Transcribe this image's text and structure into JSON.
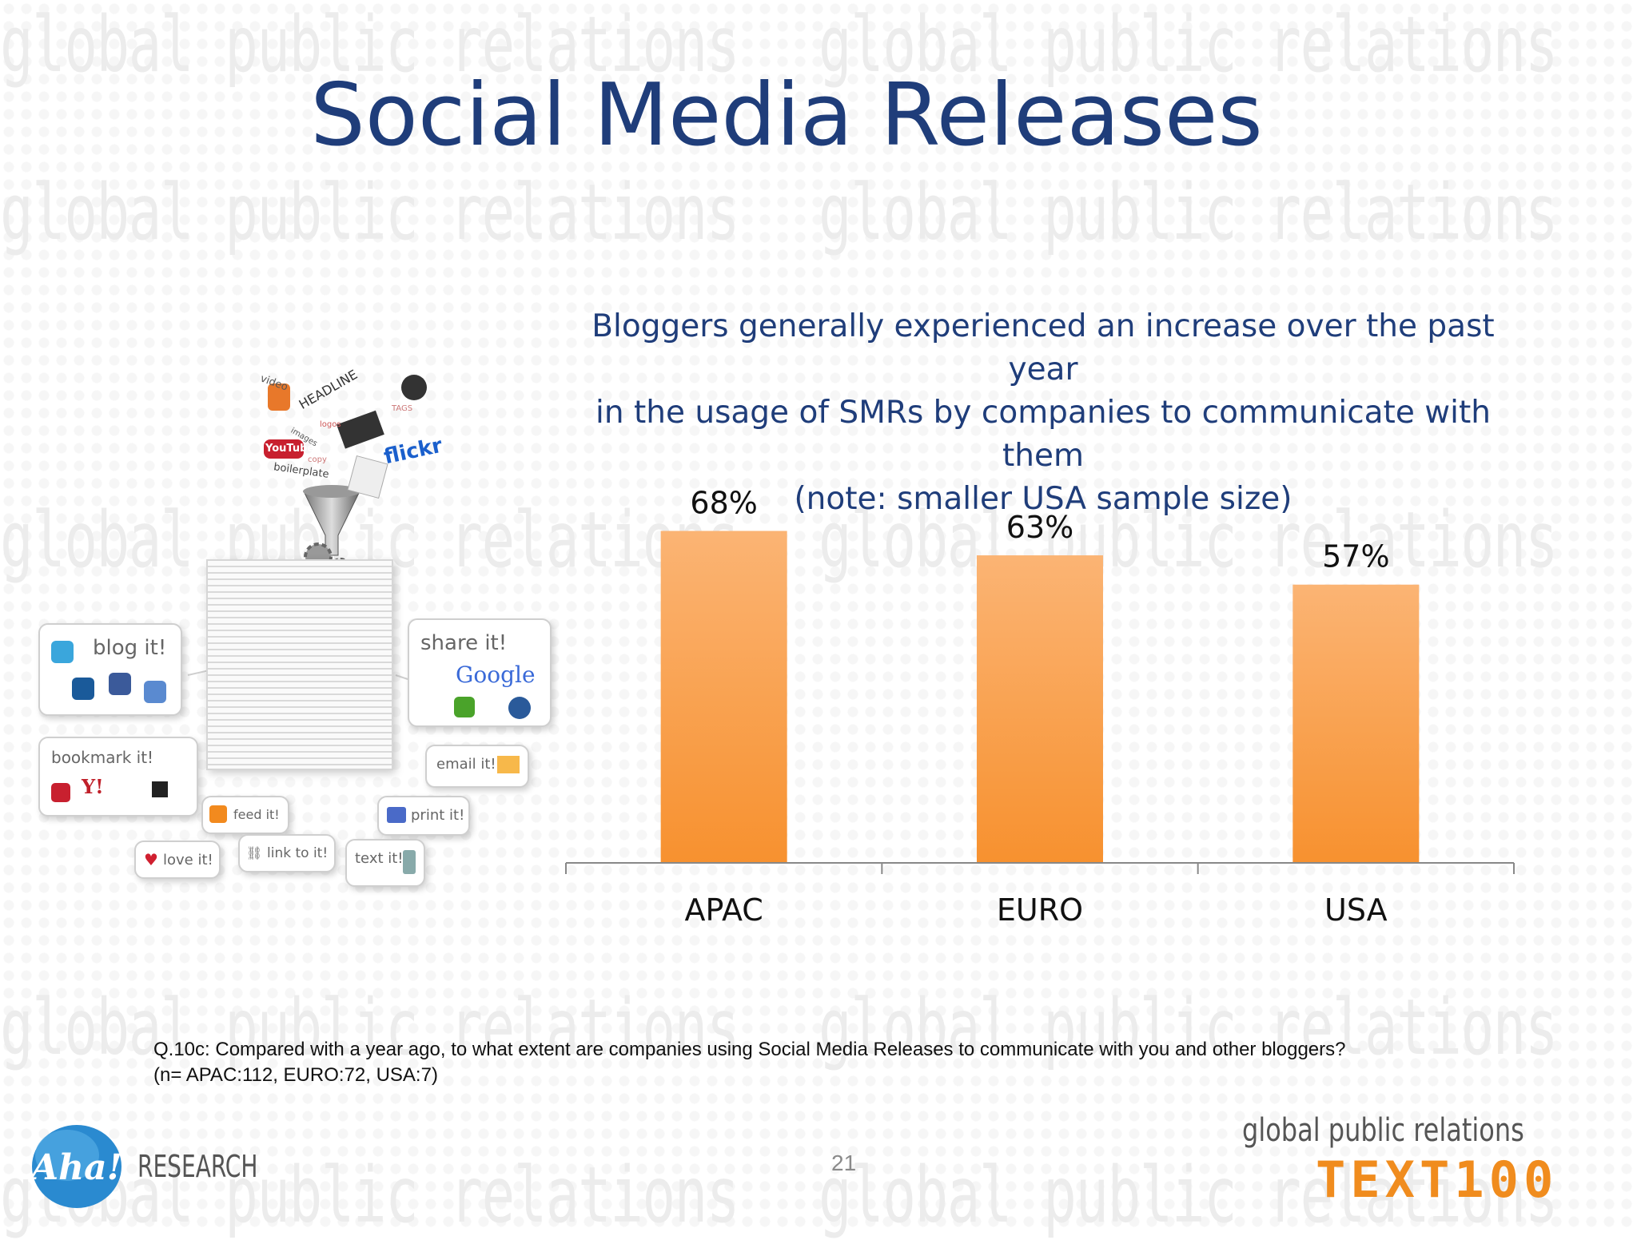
{
  "slide": {
    "title": "Social Media Releases",
    "subtitle_lines": [
      "Bloggers generally experienced an increase over the past year",
      "in the usage of SMRs by companies to communicate with them",
      "(note: smaller USA sample size)"
    ],
    "note_lines": [
      "Q.10c: Compared with a year ago, to what extent are companies using Social Media Releases to communicate with you and other bloggers?",
      "(n= APAC:112, EURO:72, USA:7)"
    ],
    "page_number": "21",
    "watermark_text": "global public relations"
  },
  "logos": {
    "left_mark": "Aha!",
    "left_word": "RESEARCH",
    "right_tagline": "global public relations",
    "right_brand": "TEXT100"
  },
  "illustration": {
    "bubbles": [
      "blog it!",
      "share it!",
      "bookmark it!",
      "email it!",
      "feed it!",
      "print it!",
      "love it!",
      "link to it!",
      "text it!"
    ],
    "words": [
      "video",
      "HEADLINE",
      "logos",
      "images",
      "copy",
      "boilerplate",
      "flickr",
      "YouTube",
      "TAGS",
      "Google"
    ]
  },
  "colors": {
    "title": "#1f3d7a",
    "bar_top": "#fbb474",
    "bar_bottom": "#f7912f",
    "axis": "#888888"
  },
  "chart_data": {
    "type": "bar",
    "categories": [
      "APAC",
      "EURO",
      "USA"
    ],
    "values": [
      68,
      63,
      57
    ],
    "value_labels": [
      "68%",
      "63%",
      "57%"
    ],
    "ylim": [
      0,
      100
    ],
    "grid": false,
    "legend": "none"
  }
}
